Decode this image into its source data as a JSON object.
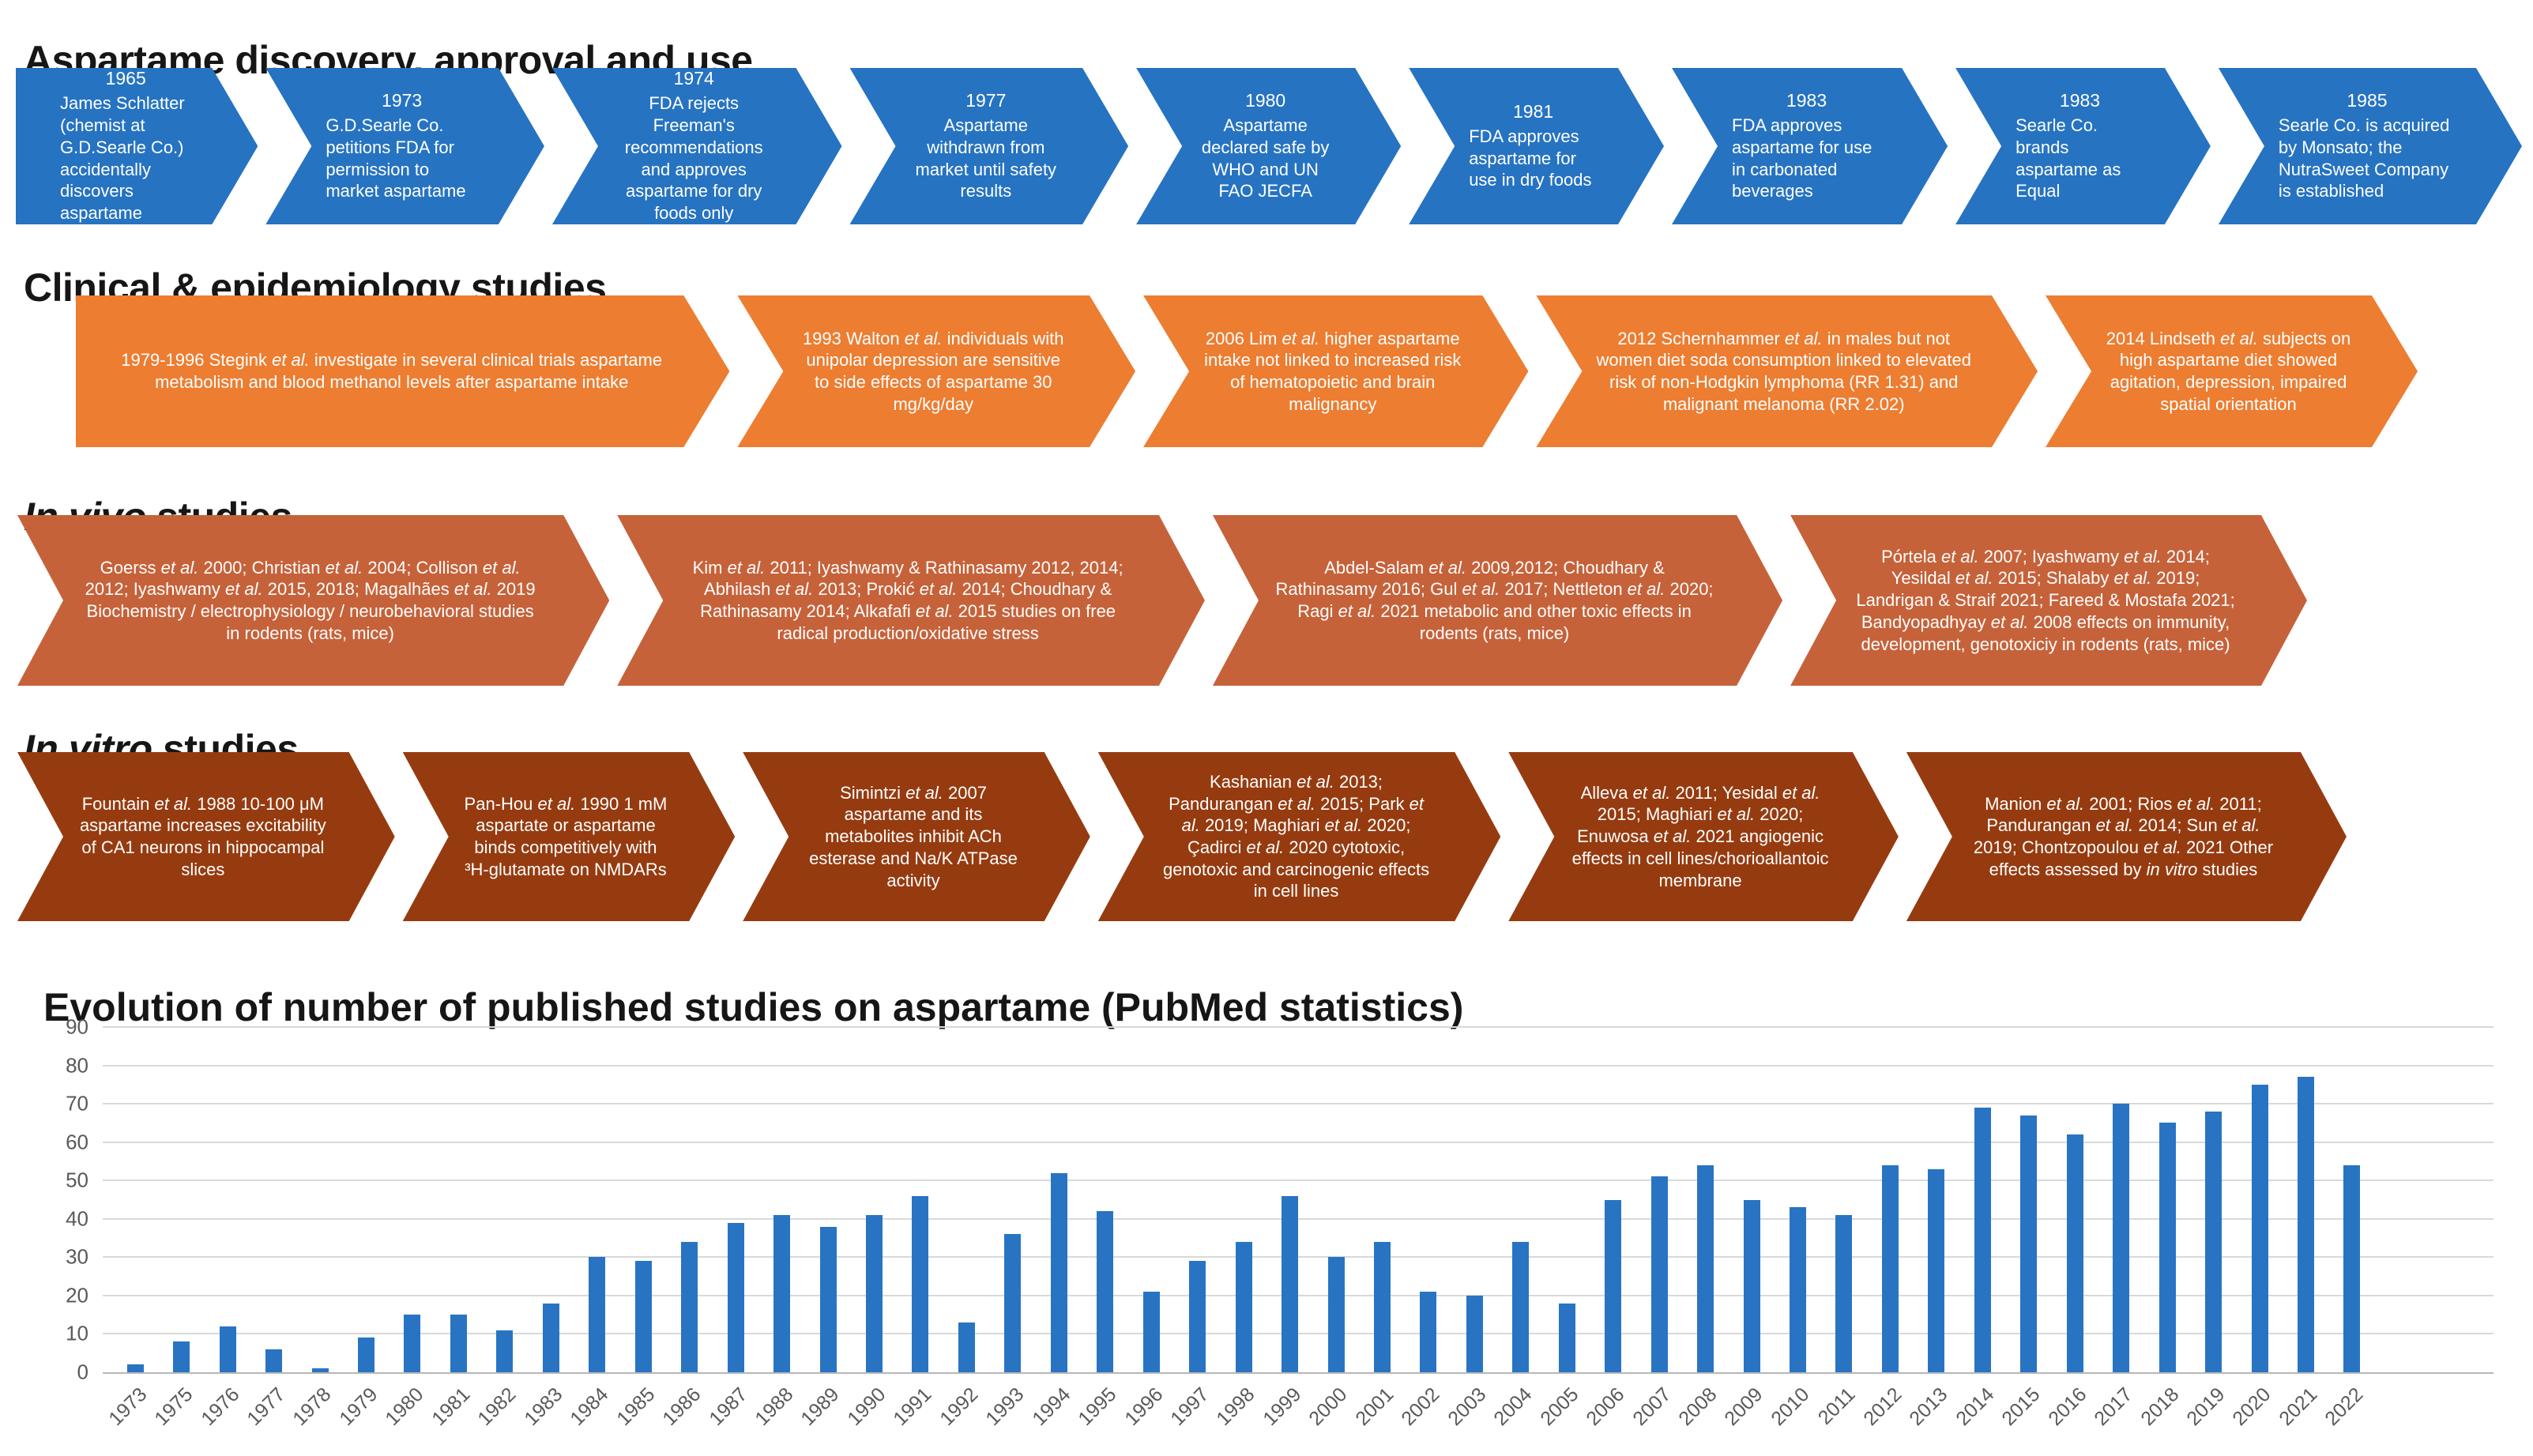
{
  "sections": {
    "discovery": {
      "title": "Aspartame discovery, approval and use",
      "color": "#2673C2",
      "items": [
        {
          "year": "1965",
          "text": "James Schlatter (chemist at G.D.Searle Co.) accidentally discovers aspartame"
        },
        {
          "year": "1973",
          "text": "G.D.Searle Co. petitions FDA for permission to market aspartame"
        },
        {
          "year": "1974",
          "text": "FDA rejects Freeman's recommendations and approves aspartame for dry foods only"
        },
        {
          "year": "1977",
          "text": "Aspartame withdrawn from market until safety results"
        },
        {
          "year": "1980",
          "text": "Aspartame declared safe by WHO and UN FAO JECFA"
        },
        {
          "year": "1981",
          "text": "FDA approves aspartame for use in dry foods"
        },
        {
          "year": "1983",
          "text": "FDA approves aspartame for use in carbonated beverages"
        },
        {
          "year": "1983",
          "text": "Searle Co. brands aspartame as Equal"
        },
        {
          "year": "1985",
          "text": "Searle Co. is acquired by Monsato; the NutraSweet Company is established"
        }
      ]
    },
    "clinical": {
      "title": "Clinical & epidemiology studies",
      "color": "#ED7D31",
      "items": [
        {
          "text": "1979-1996  Stegink et al. investigate in several clinical trials aspartame metabolism and blood methanol levels after aspartame intake"
        },
        {
          "text": "1993  Walton et al. individuals with unipolar depression are sensitive to side effects of aspartame 30 mg/kg/day"
        },
        {
          "text": "2006  Lim et al. higher aspartame intake not linked to increased risk of hematopoietic and brain malignancy"
        },
        {
          "text": "2012 Schernhammer et al. in males but not women diet soda consumption linked to elevated risk of non-Hodgkin lymphoma (RR 1.31) and malignant melanoma (RR 2.02)"
        },
        {
          "text": "2014  Lindseth et al. subjects on high aspartame diet showed agitation, depression, impaired spatial orientation"
        }
      ]
    },
    "invivo": {
      "title_italic": "In vivo",
      "title_rest": " studies",
      "color": "#C6623A",
      "items": [
        {
          "text": "Goerss et al. 2000; Christian et al. 2004; Collison et al. 2012; Iyashwamy et al. 2015, 2018; Magalhães et al. 2019 Biochemistry / electrophysiology / neurobehavioral studies in rodents (rats, mice)"
        },
        {
          "text": "Kim et al. 2011; Iyashwamy & Rathinasamy 2012, 2014; Abhilash et al. 2013; Prokić et al. 2014; Choudhary & Rathinasamy 2014; Alkafafi et al. 2015 studies on free radical production/oxidative stress"
        },
        {
          "text": "Abdel-Salam et al. 2009,2012; Choudhary & Rathinasamy 2016; Gul et al. 2017; Nettleton et al. 2020; Ragi et al. 2021 metabolic and other toxic effects in rodents (rats, mice)"
        },
        {
          "text": "Pórtela et al. 2007; Iyashwamy et al. 2014; Yesildal et al. 2015; Shalaby et al. 2019; Landrigan & Straif 2021; Fareed & Mostafa 2021; Bandyopadhyay et al. 2008 effects on immunity, development, genotoxiciy in rodents (rats, mice)"
        }
      ]
    },
    "invitro": {
      "title_italic": "In vitro",
      "title_rest": " studies",
      "color": "#963B10",
      "items": [
        {
          "text": "Fountain et al. 1988 10-100 μM aspartame increases excitability of CA1 neurons in hippocampal slices"
        },
        {
          "text": "Pan-Hou et al. 1990 1 mM aspartate or aspartame binds competitively with ³H-glutamate on NMDARs"
        },
        {
          "text": "Simintzi et al. 2007 aspartame and its metabolites inhibit ACh esterase and Na/K ATPase activity"
        },
        {
          "text": "Kashanian et al. 2013; Pandurangan et al. 2015; Park et al. 2019; Maghiari et al. 2020; Çadirci et al. 2020 cytotoxic, genotoxic and carcinogenic effects in cell lines"
        },
        {
          "text": "Alleva et al. 2011; Yesidal et al. 2015; Maghiari et al. 2020; Enuwosa et al. 2021 angiogenic effects in cell lines/chorioallantoic membrane"
        },
        {
          "text": "Manion et al. 2001; Rios et al. 2011; Pandurangan et al. 2014; Sun et al. 2019; Chontzopoulou et al. 2021 Other effects assessed by in vitro studies"
        }
      ]
    }
  },
  "chart_data": {
    "type": "bar",
    "title": "Evolution of number of published studies on aspartame (PubMed statistics)",
    "xlabel": "",
    "ylabel": "",
    "ylim": [
      0,
      90
    ],
    "yticks": [
      0,
      10,
      20,
      30,
      40,
      50,
      60,
      70,
      80,
      90
    ],
    "grid": "horizontal",
    "legend": "none",
    "bar_color": "#2874C3",
    "categories": [
      "1973",
      "1975",
      "1976",
      "1977",
      "1978",
      "1979",
      "1980",
      "1981",
      "1982",
      "1983",
      "1984",
      "1985",
      "1986",
      "1987",
      "1988",
      "1989",
      "1990",
      "1991",
      "1992",
      "1993",
      "1994",
      "1995",
      "1996",
      "1997",
      "1998",
      "1999",
      "2000",
      "2001",
      "2002",
      "2003",
      "2004",
      "2005",
      "2006",
      "2007",
      "2008",
      "2009",
      "2010",
      "2011",
      "2012",
      "2013",
      "2014",
      "2015",
      "2016",
      "2017",
      "2018",
      "2019",
      "2020",
      "2021",
      "2022"
    ],
    "values": [
      2,
      8,
      12,
      6,
      1,
      9,
      15,
      15,
      11,
      18,
      30,
      29,
      34,
      39,
      41,
      38,
      41,
      46,
      13,
      36,
      52,
      42,
      21,
      29,
      34,
      46,
      30,
      34,
      21,
      20,
      34,
      18,
      45,
      51,
      54,
      45,
      43,
      41,
      54,
      53,
      69,
      67,
      62,
      70,
      65,
      68,
      75,
      77,
      54
    ]
  }
}
